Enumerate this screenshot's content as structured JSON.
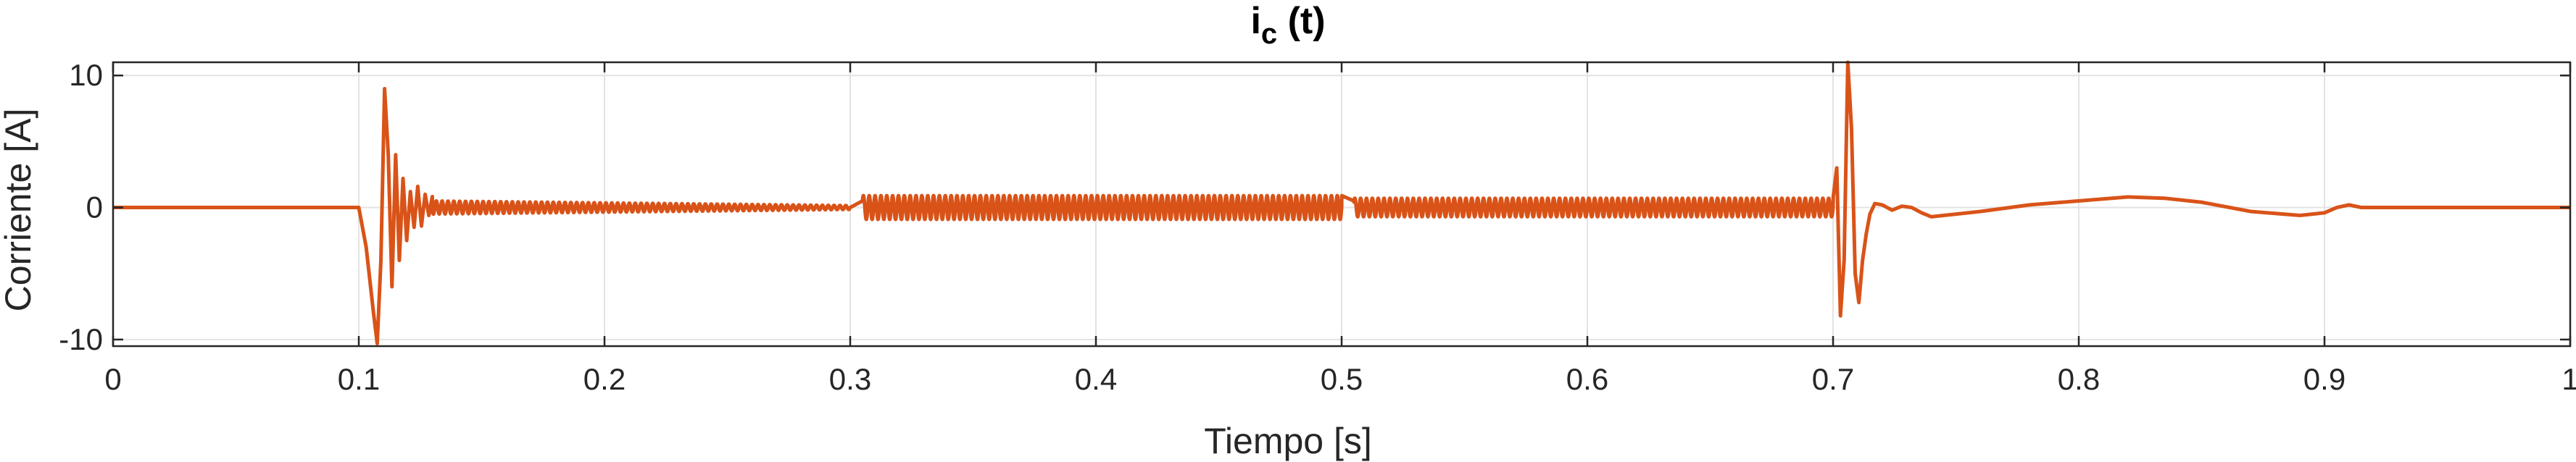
{
  "chart_data": {
    "type": "line",
    "title": "i",
    "title_subscript": "c",
    "title_suffix": " (t)",
    "xlabel": "Tiempo [s]",
    "ylabel": "Corriente [A]",
    "xlim": [
      0,
      1
    ],
    "ylim": [
      -10.5,
      11
    ],
    "xticks": [
      0,
      0.1,
      0.2,
      0.3,
      0.4,
      0.5,
      0.6,
      0.7,
      0.8,
      0.9,
      1
    ],
    "xtick_labels": [
      "0",
      "0.1",
      "0.2",
      "0.3",
      "0.4",
      "0.5",
      "0.6",
      "0.7",
      "0.8",
      "0.9",
      "1"
    ],
    "yticks": [
      -10,
      0,
      10
    ],
    "ytick_labels": [
      "-10",
      "0",
      "10"
    ],
    "grid": true,
    "colors": {
      "line": "#d95319",
      "grid": "#e3e3e3",
      "axes": "#262626"
    },
    "series": [
      {
        "x": [
          0,
          0.1,
          0.1,
          0.103,
          0.106,
          0.1075,
          0.109,
          0.1105,
          0.112,
          0.1135,
          0.115,
          0.1165,
          0.118,
          0.1195,
          0.121,
          0.1225,
          0.124,
          0.1255,
          0.127,
          0.1285,
          0.13,
          0.1315,
          0.133,
          0.1345,
          0.136,
          0.14,
          0.15,
          0.2,
          0.3,
          0.305,
          0.31,
          0.5,
          0.505,
          0.51,
          0.7,
          0.7015,
          0.703,
          0.7045,
          0.706,
          0.7075,
          0.709,
          0.7105,
          0.712,
          0.7135,
          0.715,
          0.717,
          0.72,
          0.724,
          0.728,
          0.732,
          0.736,
          0.74,
          0.745,
          0.75,
          0.76,
          0.78,
          0.8,
          0.82,
          0.835,
          0.85,
          0.87,
          0.89,
          0.9,
          0.905,
          0.91,
          0.915,
          0.93,
          1
        ],
        "y": [
          0,
          0,
          0,
          -3,
          -8,
          -10.3,
          -4,
          9,
          4,
          -6,
          4,
          -4,
          2.2,
          -2.5,
          1.2,
          -1.5,
          1.6,
          -1.4,
          1.0,
          -0.6,
          0.9,
          -0.5,
          0.5,
          -0.4,
          0.3,
          0.1,
          0,
          0,
          0,
          0.5,
          0.9,
          0.9,
          0.5,
          0.7,
          0.7,
          3,
          -8.2,
          -4,
          11,
          6,
          -5,
          -7.2,
          -4,
          -2,
          -0.5,
          0.3,
          0.2,
          -0.2,
          0.1,
          0,
          -0.4,
          -0.7,
          -0.6,
          -0.5,
          -0.3,
          0.2,
          0.5,
          0.8,
          0.7,
          0.4,
          -0.3,
          -0.6,
          -0.4,
          0,
          0.2,
          0,
          0,
          0
        ],
        "oscillation": [
          {
            "from": 0.13,
            "to": 0.3,
            "amplitude_start": 0.5,
            "amplitude_end": 0.15,
            "frequency_hz": 420
          },
          {
            "from": 0.305,
            "to": 0.5,
            "amplitude_start": 0.9,
            "amplitude_end": 0.9,
            "frequency_hz": 420
          },
          {
            "from": 0.505,
            "to": 0.7,
            "amplitude_start": 0.7,
            "amplitude_end": 0.7,
            "frequency_hz": 420
          }
        ]
      }
    ]
  }
}
